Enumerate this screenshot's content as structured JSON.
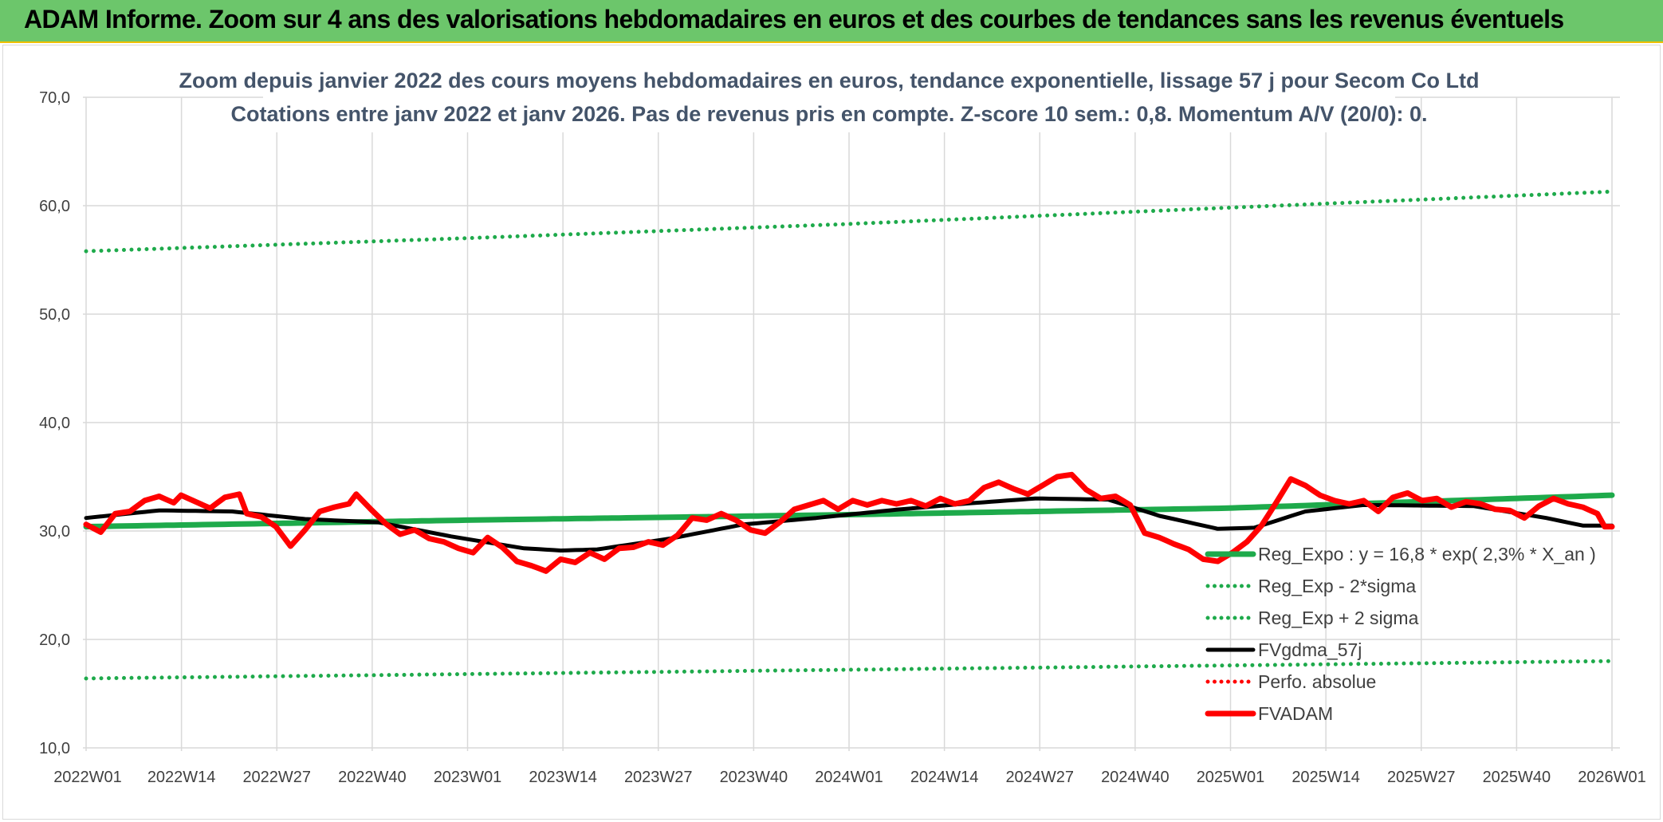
{
  "header": {
    "title": "ADAM Informe. Zoom sur 4 ans des valorisations hebdomadaires en euros et des courbes de tendances sans les revenus éventuels"
  },
  "chart_data": {
    "type": "line",
    "title_line1": "Zoom depuis janvier 2022 des cours moyens hebdomadaires en euros, tendance exponentielle, lissage 57 j pour Secom Co Ltd",
    "title_line2": "Cotations entre janv 2022 et janv 2026. Pas de revenus pris en compte. Z-score 10 sem.: 0,8. Momentum A/V (20/0): 0.",
    "ylim": [
      10,
      70
    ],
    "y_ticks": [
      "10,0",
      "20,0",
      "30,0",
      "40,0",
      "50,0",
      "60,0",
      "70,0"
    ],
    "y_tick_values": [
      10,
      20,
      30,
      40,
      50,
      60,
      70
    ],
    "x_ticks": [
      "2022W01",
      "2022W14",
      "2022W27",
      "2022W40",
      "2023W01",
      "2023W14",
      "2023W27",
      "2023W40",
      "2024W01",
      "2024W14",
      "2024W27",
      "2024W40",
      "2025W01",
      "2025W14",
      "2025W27",
      "2025W40",
      "2026W01"
    ],
    "week_count": 210,
    "legend_position": "bottom-right",
    "series": [
      {
        "name": "Reg_Expo : y = 16,8 * exp( 2,3% *  X_an )",
        "style": "solid-thick",
        "color": "#1eaa4b",
        "anchors": [
          [
            0,
            30.4
          ],
          [
            52,
            31.0
          ],
          [
            104,
            31.5
          ],
          [
            156,
            32.1
          ],
          [
            209,
            33.3
          ]
        ]
      },
      {
        "name": "Reg_Exp - 2*sigma",
        "style": "dotted",
        "color": "#1eaa4b",
        "anchors": [
          [
            0,
            16.4
          ],
          [
            104,
            17.2
          ],
          [
            209,
            18.0
          ]
        ]
      },
      {
        "name": "Reg_Exp + 2 sigma",
        "style": "dotted",
        "color": "#1eaa4b",
        "anchors": [
          [
            0,
            55.8
          ],
          [
            52,
            57.0
          ],
          [
            104,
            58.3
          ],
          [
            156,
            59.8
          ],
          [
            209,
            61.3
          ]
        ]
      },
      {
        "name": "FVgdma_57j",
        "style": "solid",
        "color": "#000000",
        "anchors": [
          [
            0,
            31.2
          ],
          [
            10,
            31.9
          ],
          [
            20,
            31.8
          ],
          [
            30,
            31.1
          ],
          [
            40,
            30.8
          ],
          [
            50,
            29.5
          ],
          [
            60,
            28.4
          ],
          [
            65,
            28.2
          ],
          [
            70,
            28.3
          ],
          [
            80,
            29.3
          ],
          [
            90,
            30.6
          ],
          [
            100,
            31.2
          ],
          [
            110,
            31.9
          ],
          [
            120,
            32.5
          ],
          [
            130,
            33.0
          ],
          [
            140,
            32.9
          ],
          [
            147,
            31.4
          ],
          [
            155,
            30.2
          ],
          [
            160,
            30.3
          ],
          [
            167,
            31.8
          ],
          [
            175,
            32.4
          ],
          [
            190,
            32.3
          ],
          [
            200,
            31.2
          ],
          [
            205,
            30.5
          ],
          [
            209,
            30.5
          ]
        ]
      },
      {
        "name": "Perfo. absolue",
        "style": "dotted",
        "color": "#ff0000",
        "anchors": []
      },
      {
        "name": "FVADAM",
        "style": "solid-thick",
        "color": "#ff0000",
        "anchors": [
          [
            0,
            30.6
          ],
          [
            2,
            29.9
          ],
          [
            4,
            31.6
          ],
          [
            6,
            31.8
          ],
          [
            8,
            32.8
          ],
          [
            10,
            33.2
          ],
          [
            12,
            32.6
          ],
          [
            13,
            33.3
          ],
          [
            15,
            32.7
          ],
          [
            17,
            32.1
          ],
          [
            19,
            33.1
          ],
          [
            21,
            33.4
          ],
          [
            22,
            31.6
          ],
          [
            24,
            31.3
          ],
          [
            26,
            30.4
          ],
          [
            28,
            28.6
          ],
          [
            30,
            30.1
          ],
          [
            32,
            31.8
          ],
          [
            34,
            32.2
          ],
          [
            36,
            32.5
          ],
          [
            37,
            33.4
          ],
          [
            39,
            32.0
          ],
          [
            41,
            30.7
          ],
          [
            43,
            29.7
          ],
          [
            45,
            30.1
          ],
          [
            47,
            29.3
          ],
          [
            49,
            29.0
          ],
          [
            51,
            28.4
          ],
          [
            53,
            28.0
          ],
          [
            55,
            29.4
          ],
          [
            57,
            28.5
          ],
          [
            59,
            27.2
          ],
          [
            61,
            26.8
          ],
          [
            63,
            26.3
          ],
          [
            65,
            27.4
          ],
          [
            67,
            27.1
          ],
          [
            69,
            28.0
          ],
          [
            71,
            27.4
          ],
          [
            73,
            28.4
          ],
          [
            75,
            28.5
          ],
          [
            77,
            29.0
          ],
          [
            79,
            28.7
          ],
          [
            81,
            29.6
          ],
          [
            83,
            31.2
          ],
          [
            85,
            31.0
          ],
          [
            87,
            31.6
          ],
          [
            89,
            31.0
          ],
          [
            91,
            30.1
          ],
          [
            93,
            29.8
          ],
          [
            95,
            30.8
          ],
          [
            97,
            32.0
          ],
          [
            99,
            32.4
          ],
          [
            101,
            32.8
          ],
          [
            103,
            32.0
          ],
          [
            105,
            32.8
          ],
          [
            107,
            32.4
          ],
          [
            109,
            32.8
          ],
          [
            111,
            32.5
          ],
          [
            113,
            32.8
          ],
          [
            115,
            32.3
          ],
          [
            117,
            33.0
          ],
          [
            119,
            32.5
          ],
          [
            121,
            32.8
          ],
          [
            123,
            34.0
          ],
          [
            125,
            34.5
          ],
          [
            127,
            33.9
          ],
          [
            129,
            33.4
          ],
          [
            131,
            34.2
          ],
          [
            133,
            35.0
          ],
          [
            135,
            35.2
          ],
          [
            137,
            33.8
          ],
          [
            139,
            33.0
          ],
          [
            141,
            33.2
          ],
          [
            143,
            32.4
          ],
          [
            145,
            29.8
          ],
          [
            147,
            29.4
          ],
          [
            149,
            28.8
          ],
          [
            151,
            28.3
          ],
          [
            153,
            27.4
          ],
          [
            155,
            27.2
          ],
          [
            157,
            28.0
          ],
          [
            159,
            29.0
          ],
          [
            161,
            30.5
          ],
          [
            163,
            32.6
          ],
          [
            165,
            34.8
          ],
          [
            167,
            34.2
          ],
          [
            169,
            33.3
          ],
          [
            171,
            32.8
          ],
          [
            173,
            32.5
          ],
          [
            175,
            32.8
          ],
          [
            177,
            31.8
          ],
          [
            179,
            33.1
          ],
          [
            181,
            33.5
          ],
          [
            183,
            32.8
          ],
          [
            185,
            33.0
          ],
          [
            187,
            32.2
          ],
          [
            189,
            32.7
          ],
          [
            191,
            32.5
          ],
          [
            193,
            32.0
          ],
          [
            195,
            31.9
          ],
          [
            197,
            31.2
          ],
          [
            199,
            32.3
          ],
          [
            201,
            33.0
          ],
          [
            203,
            32.5
          ],
          [
            205,
            32.2
          ],
          [
            207,
            31.6
          ],
          [
            208,
            30.4
          ],
          [
            209,
            30.4
          ]
        ]
      }
    ]
  }
}
